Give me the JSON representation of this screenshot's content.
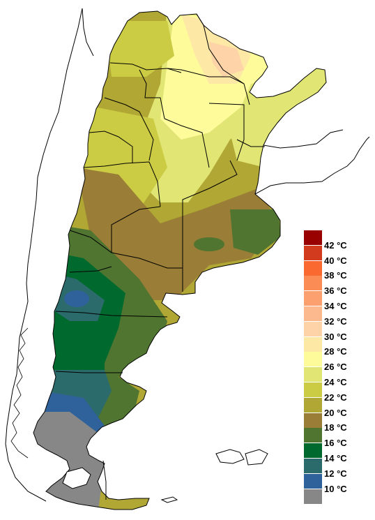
{
  "legend": {
    "items": [
      {
        "label": "42 °C",
        "color": "#990000"
      },
      {
        "label": "40 °C",
        "color": "#d33b1f"
      },
      {
        "label": "38 °C",
        "color": "#fa6a30"
      },
      {
        "label": "36 °C",
        "color": "#fb8c55"
      },
      {
        "label": "34 °C",
        "color": "#fca06f"
      },
      {
        "label": "32 °C",
        "color": "#fbb98d"
      },
      {
        "label": "30 °C",
        "color": "#fdd3a7"
      },
      {
        "label": "28 °C",
        "color": "#fde8a6"
      },
      {
        "label": "26 °C",
        "color": "#fdfb9a"
      },
      {
        "label": "24 °C",
        "color": "#e1e574"
      },
      {
        "label": "22 °C",
        "color": "#cbcc43"
      },
      {
        "label": "20 °C",
        "color": "#b0a734"
      },
      {
        "label": "18 °C",
        "color": "#9a7d36"
      },
      {
        "label": "16 °C",
        "color": "#4f7530"
      },
      {
        "label": "14 °C",
        "color": "#006a2e"
      },
      {
        "label": "12 °C",
        "color": "#2b6b6b"
      },
      {
        "label": "10 °C",
        "color": "#2f629a"
      },
      {
        "label": "",
        "color": "#878787"
      }
    ]
  },
  "map": {
    "border_color": "#000000",
    "islands_color": "#ffffff"
  }
}
